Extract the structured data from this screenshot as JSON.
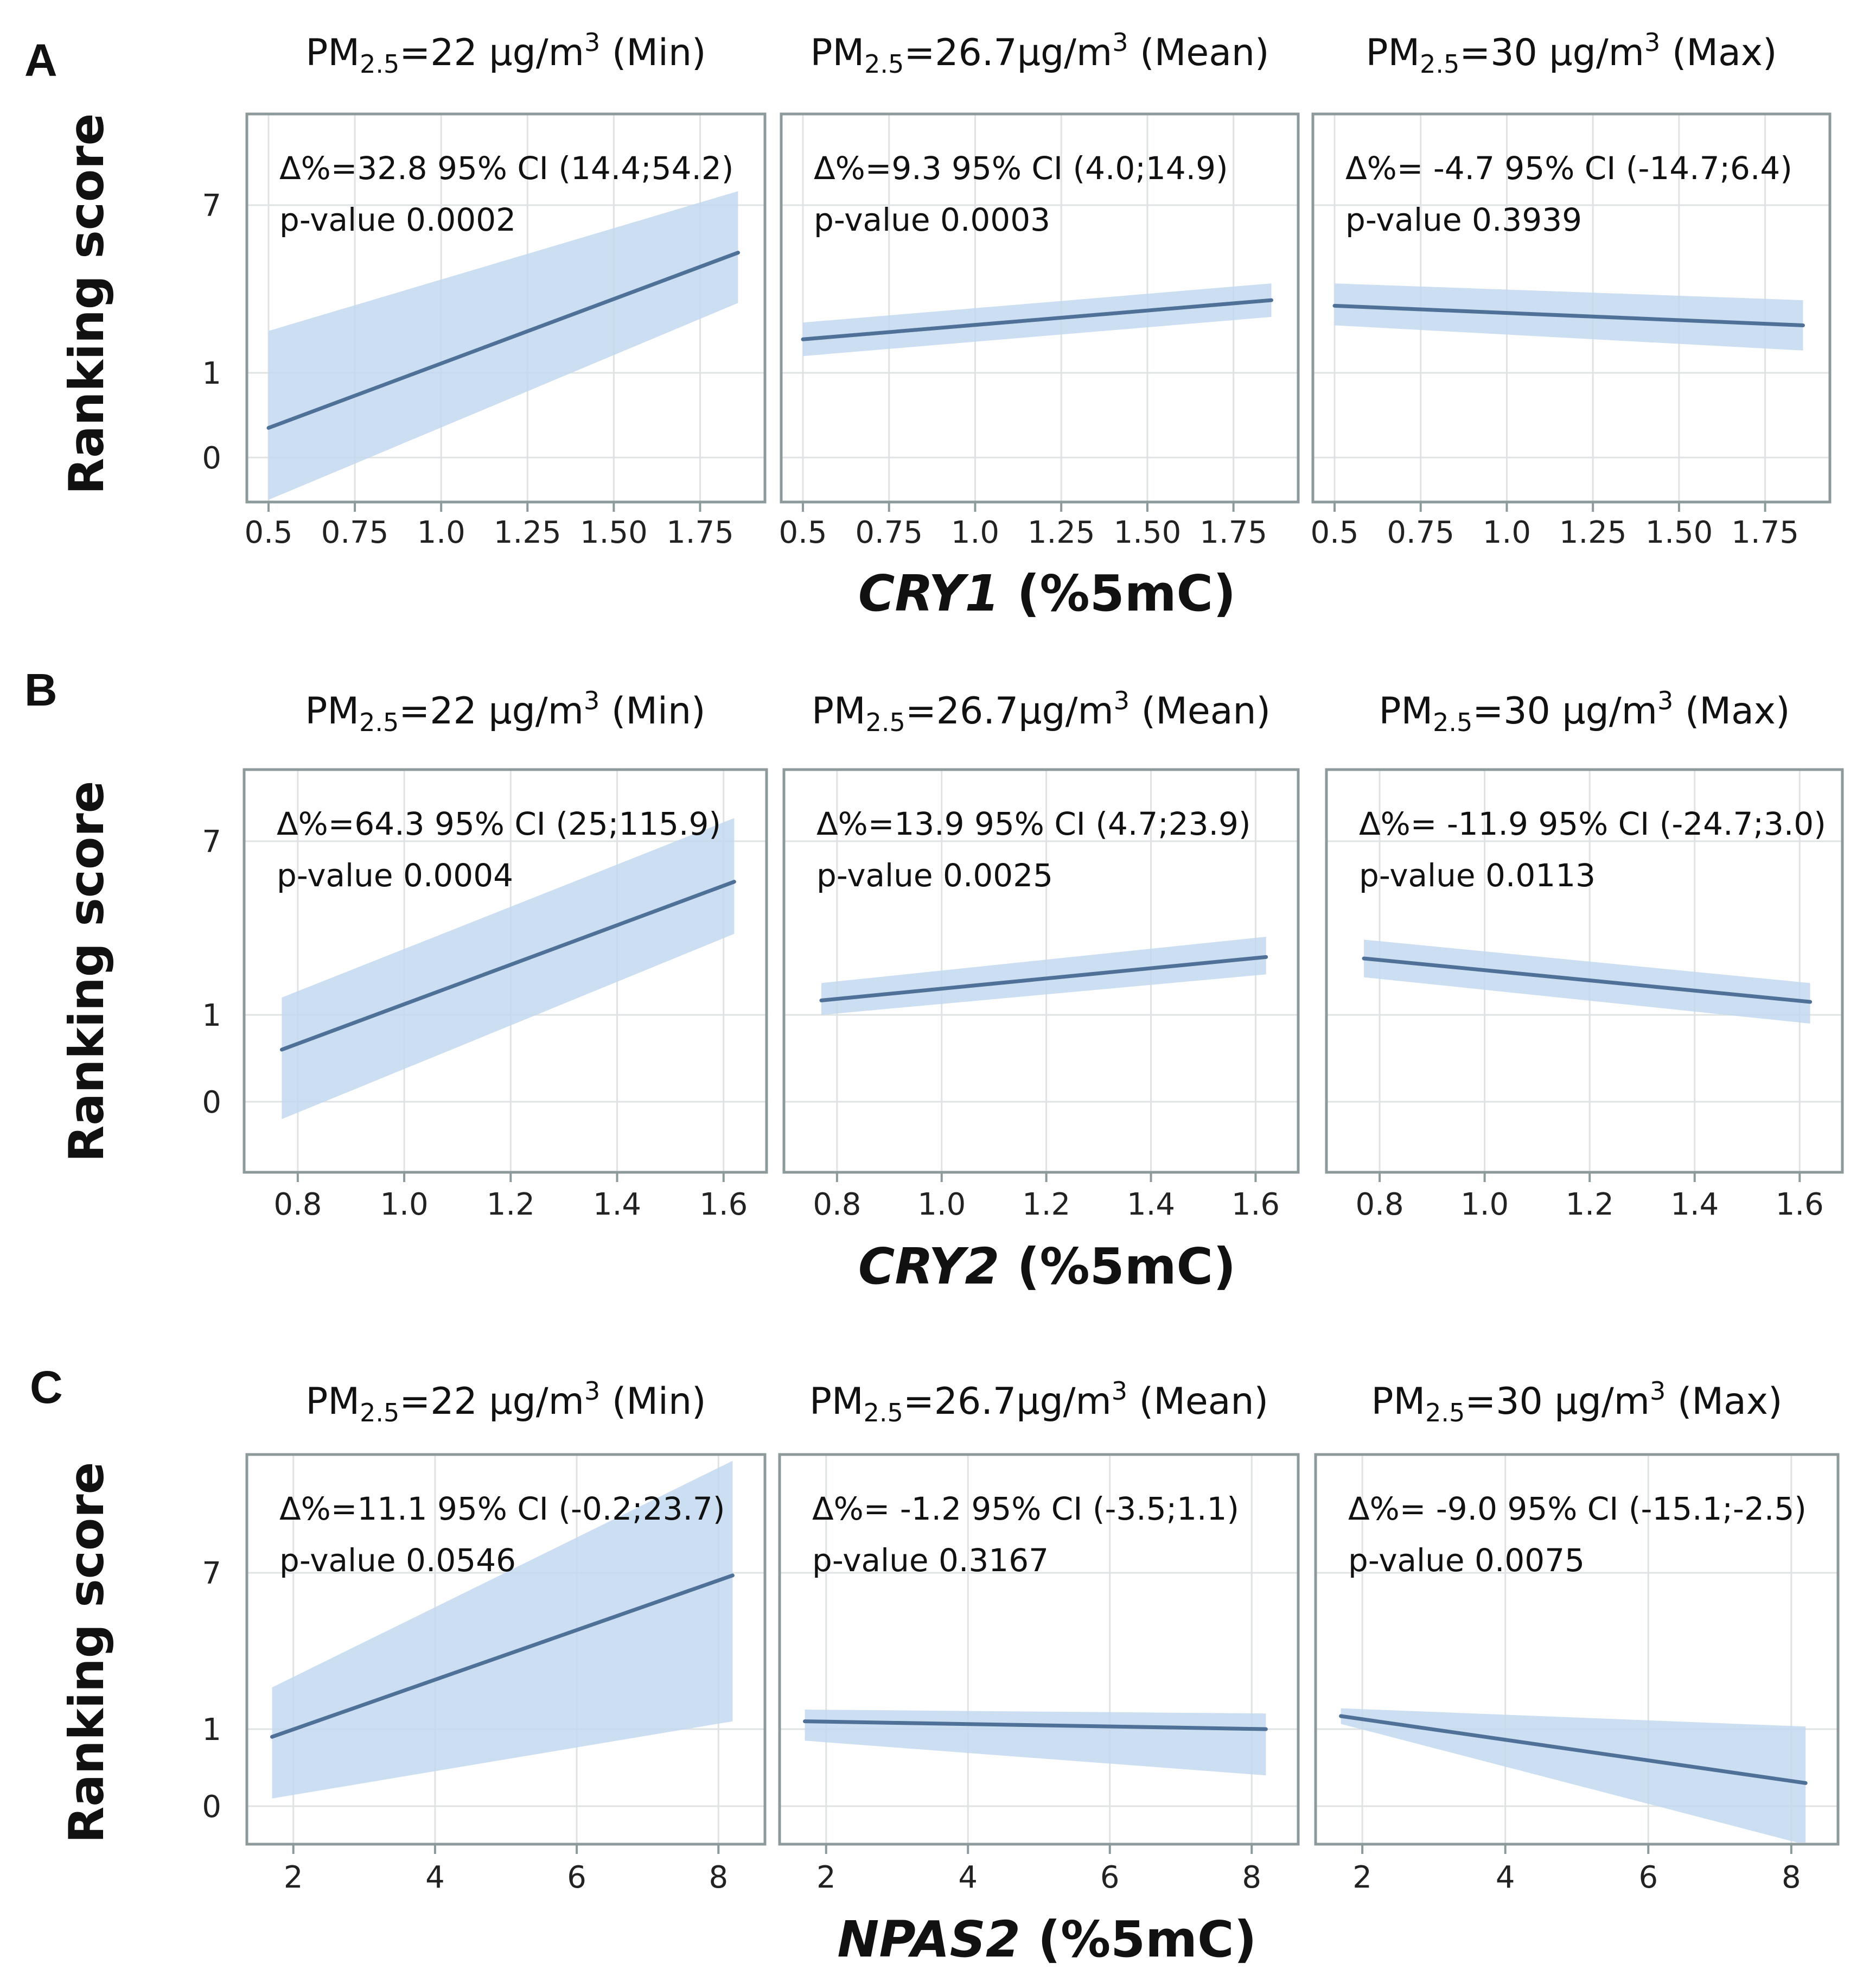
{
  "chart_data": [
    {
      "panel_label": "A",
      "type": "line",
      "gene": "CRY1",
      "xlabel_suffix": " (%5mC)",
      "ylabel": "Ranking score",
      "xlim": [
        0.5,
        1.875
      ],
      "ylim": [
        -0.56,
        9.7
      ],
      "xticks": [
        0.5,
        0.75,
        1.0,
        1.25,
        1.5,
        1.75
      ],
      "xtick_labels": [
        "0.5",
        "0.75",
        "1.0",
        "1.25",
        "1.50",
        "1.75"
      ],
      "ytick_labels": [
        "0",
        "1",
        "7"
      ],
      "facets": [
        {
          "title_pm": "PM",
          "title_sub": "2.5",
          "title_val": "=22 μg/m",
          "title_sup": "3",
          "title_tail": " (Min)",
          "delta": "Δ%=32.8  95% CI (14.4;54.2)",
          "pvalue": "p-value 0.0002",
          "x": [
            0.5,
            1.86
          ],
          "y": [
            0.35,
            5.3
          ],
          "lower": [
            -0.5,
            3.5
          ],
          "upper": [
            2.5,
            7.5
          ]
        },
        {
          "title_pm": "PM",
          "title_sub": "2.5",
          "title_val": "=26.7μg/m",
          "title_sup": "3",
          "title_tail": " (Mean)",
          "delta": "Δ%=9.3 95% CI (4.0;14.9)",
          "pvalue": "p-value 0.0003",
          "x": [
            0.5,
            1.86
          ],
          "y": [
            2.2,
            3.6
          ],
          "lower": [
            1.6,
            3.0
          ],
          "upper": [
            2.8,
            4.2
          ]
        },
        {
          "title_pm": "PM",
          "title_sub": "2.5",
          "title_val": "=30 μg/m",
          "title_sup": "3",
          "title_tail": " (Max)",
          "delta": "Δ%= -4.7 95% CI (-14.7;6.4)",
          "pvalue": "p-value 0.3939",
          "x": [
            0.5,
            1.86
          ],
          "y": [
            3.4,
            2.7
          ],
          "lower": [
            2.7,
            1.8
          ],
          "upper": [
            4.2,
            3.6
          ]
        }
      ]
    },
    {
      "panel_label": "B",
      "type": "line",
      "gene": "CRY2",
      "xlabel_suffix": " (%5mC)",
      "ylabel": "Ranking score",
      "xlim": [
        0.74,
        1.64
      ],
      "ylim": [
        -0.8,
        9.7
      ],
      "xticks": [
        0.8,
        1.0,
        1.2,
        1.4,
        1.6
      ],
      "xtick_labels": [
        "0.8",
        "1.0",
        "1.2",
        "1.4",
        "1.6"
      ],
      "ytick_labels": [
        "0",
        "1",
        "7"
      ],
      "facets": [
        {
          "title_pm": "PM",
          "title_sub": "2.5",
          "title_val": "=22 μg/m",
          "title_sup": "3",
          "title_tail": "  (Min)",
          "delta": "Δ%=64.3  95% CI (25;115.9)",
          "pvalue": "p-value 0.0004",
          "x": [
            0.77,
            1.62
          ],
          "y": [
            0.6,
            5.6
          ],
          "lower": [
            -0.2,
            3.8
          ],
          "upper": [
            1.6,
            7.8
          ]
        },
        {
          "title_pm": "PM",
          "title_sub": "2.5",
          "title_val": "=26.7μg/m",
          "title_sup": "3",
          "title_tail": " (Mean)",
          "delta": "Δ%=13.9  95% CI (4.7;23.9)",
          "pvalue": "p-value 0.0025",
          "x": [
            0.77,
            1.62
          ],
          "y": [
            1.5,
            3.0
          ],
          "lower": [
            1.0,
            2.4
          ],
          "upper": [
            2.1,
            3.7
          ]
        },
        {
          "title_pm": "PM",
          "title_sub": "2.5",
          "title_val": "=30 μg/m",
          "title_sup": "3",
          "title_tail": " (Max)",
          "delta": "Δ%= -11.9  95% CI (-24.7;3.0)",
          "pvalue": "p-value 0.0113",
          "x": [
            0.77,
            1.62
          ],
          "y": [
            2.95,
            1.45
          ],
          "lower": [
            2.3,
            0.9
          ],
          "upper": [
            3.6,
            2.1
          ]
        }
      ]
    },
    {
      "panel_label": "C",
      "type": "line",
      "gene": "NPAS2",
      "xlabel_suffix": " (%5mC)",
      "ylabel": "Ranking score",
      "xlim": [
        1.65,
        8.35
      ],
      "ylim": [
        -0.5,
        11.3
      ],
      "xticks": [
        2,
        4,
        6,
        8
      ],
      "xtick_labels": [
        "2",
        "4",
        "6",
        "8"
      ],
      "ytick_labels": [
        "0",
        "1",
        "7"
      ],
      "facets": [
        {
          "title_pm": "PM",
          "title_sub": "2.5",
          "title_val": "=22 μg/m",
          "title_sup": "3",
          "title_tail": " (Min)",
          "delta": "Δ%=11.1  95% CI (-0.2;23.7)",
          "pvalue": "p-value 0.0546",
          "x": [
            1.7,
            8.2
          ],
          "y": [
            0.9,
            6.9
          ],
          "lower": [
            0.1,
            1.3
          ],
          "upper": [
            2.6,
            11.3
          ]
        },
        {
          "title_pm": "PM",
          "title_sub": "2.5",
          "title_val": "=26.7μg/m",
          "title_sup": "3",
          "title_tail": " (Mean)",
          "delta": "Δ%= -1.2  95% CI (-3.5;1.1)",
          "pvalue": "p-value 0.3167",
          "x": [
            1.7,
            8.2
          ],
          "y": [
            1.3,
            1.0
          ],
          "lower": [
            0.85,
            0.4
          ],
          "upper": [
            1.75,
            1.6
          ]
        },
        {
          "title_pm": "PM",
          "title_sub": "2.5",
          "title_val": "=30 μg/m",
          "title_sup": "3",
          "title_tail": " (Max)",
          "delta": "Δ%= -9.0 95% CI (-15.1;-2.5)",
          "pvalue": "p-value 0.0075",
          "x": [
            1.7,
            8.2
          ],
          "y": [
            1.5,
            0.3
          ],
          "lower": [
            1.2,
            -0.5
          ],
          "upper": [
            1.8,
            1.1
          ]
        }
      ]
    }
  ],
  "colors": {
    "line": "#4f7198",
    "band": "#c3d8ee",
    "frame": "#8c9a9b",
    "grid": "#dfe3e4"
  }
}
